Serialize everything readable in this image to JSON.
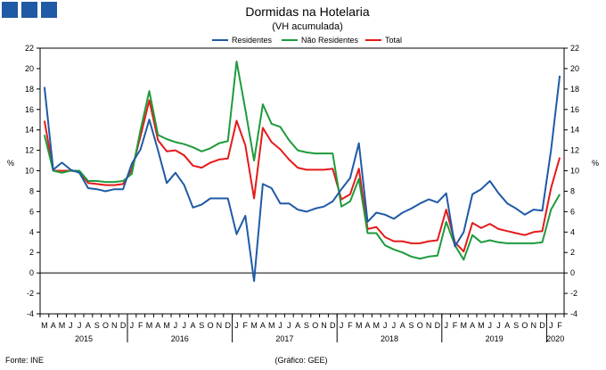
{
  "logo": {
    "name": "ine-logo-squares",
    "color": "#1f5aa6"
  },
  "chart_data": {
    "type": "line",
    "title": "Dormidas na Hotelaria",
    "subtitle": "(VH acumulada)",
    "ylabel_left": "%",
    "ylabel_right": "%",
    "ylim": [
      -4,
      22
    ],
    "yticks": [
      -4,
      -2,
      0,
      2,
      4,
      6,
      8,
      10,
      12,
      14,
      16,
      18,
      20,
      22
    ],
    "legend_position": "top-center",
    "grid": false,
    "month_labels": [
      "M",
      "A",
      "M",
      "J",
      "J",
      "A",
      "S",
      "O",
      "N",
      "D",
      "J",
      "F",
      "M",
      "A",
      "M",
      "J",
      "J",
      "A",
      "S",
      "O",
      "N",
      "D",
      "J",
      "F",
      "M",
      "A",
      "M",
      "J",
      "J",
      "A",
      "S",
      "O",
      "N",
      "D",
      "J",
      "F",
      "M",
      "A",
      "M",
      "J",
      "J",
      "A",
      "S",
      "O",
      "N",
      "D",
      "J",
      "F",
      "M",
      "A",
      "M",
      "J",
      "J",
      "A",
      "S",
      "O",
      "N",
      "D",
      "J",
      "F"
    ],
    "years": [
      {
        "label": "2015",
        "start": 0,
        "end": 9
      },
      {
        "label": "2016",
        "start": 10,
        "end": 21
      },
      {
        "label": "2017",
        "start": 22,
        "end": 33
      },
      {
        "label": "2018",
        "start": 34,
        "end": 45
      },
      {
        "label": "2019",
        "start": 46,
        "end": 57
      },
      {
        "label": "2020",
        "start": 58,
        "end": 59
      }
    ],
    "series": [
      {
        "name": "Residentes",
        "color": "#1f5aa6",
        "values": [
          18.2,
          10.1,
          10.8,
          10.1,
          9.8,
          8.3,
          8.2,
          8.0,
          8.2,
          8.2,
          10.7,
          12.1,
          15.0,
          12.0,
          8.8,
          9.8,
          8.6,
          6.4,
          6.7,
          7.3,
          7.3,
          7.3,
          3.8,
          5.6,
          -0.8,
          8.7,
          8.3,
          6.8,
          6.8,
          6.2,
          6.0,
          6.3,
          6.5,
          7.0,
          8.2,
          9.3,
          12.7,
          5.0,
          5.9,
          5.7,
          5.3,
          5.9,
          6.3,
          6.8,
          7.2,
          6.9,
          7.8,
          2.6,
          4.0,
          7.7,
          8.2,
          9.0,
          7.8,
          6.8,
          6.3,
          5.7,
          6.2,
          6.1,
          12.0,
          19.3
        ]
      },
      {
        "name": "Não Residentes",
        "color": "#1e9b3c",
        "values": [
          13.5,
          10.0,
          9.8,
          10.0,
          10.0,
          9.0,
          9.0,
          8.9,
          8.9,
          9.0,
          9.7,
          14.0,
          17.8,
          13.5,
          13.1,
          12.8,
          12.6,
          12.3,
          11.9,
          12.2,
          12.7,
          12.9,
          20.7,
          16.0,
          11.0,
          16.5,
          14.6,
          14.3,
          13.0,
          12.0,
          11.8,
          11.7,
          11.7,
          11.7,
          6.5,
          7.0,
          9.2,
          3.9,
          3.9,
          2.7,
          2.3,
          2.0,
          1.6,
          1.4,
          1.6,
          1.7,
          5.0,
          2.7,
          1.3,
          3.7,
          3.0,
          3.2,
          3.0,
          2.9,
          2.9,
          2.9,
          2.9,
          3.0,
          6.2,
          7.7
        ]
      },
      {
        "name": "Total",
        "color": "#e41a1a",
        "values": [
          14.9,
          10.0,
          10.0,
          10.0,
          9.9,
          8.8,
          8.7,
          8.6,
          8.6,
          8.7,
          10.1,
          13.4,
          16.9,
          13.0,
          11.9,
          12.0,
          11.5,
          10.5,
          10.3,
          10.8,
          11.1,
          11.2,
          14.9,
          12.5,
          7.3,
          14.2,
          12.8,
          12.1,
          11.1,
          10.3,
          10.1,
          10.1,
          10.1,
          10.2,
          7.2,
          7.7,
          10.2,
          4.3,
          4.5,
          3.5,
          3.1,
          3.1,
          2.9,
          2.9,
          3.1,
          3.2,
          6.2,
          3.0,
          2.1,
          4.9,
          4.4,
          4.8,
          4.3,
          4.1,
          3.9,
          3.7,
          4.0,
          4.1,
          8.3,
          11.3
        ]
      }
    ]
  },
  "footer": {
    "source": "Fonte: INE",
    "credit": "(Gráfico: GEE)"
  }
}
